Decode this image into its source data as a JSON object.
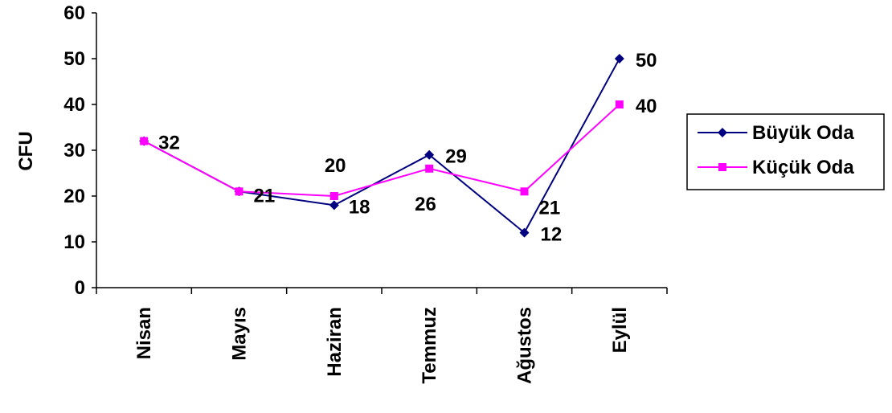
{
  "chart_data": {
    "type": "line",
    "title": "",
    "xlabel": "",
    "ylabel": "CFU",
    "ylim": [
      0,
      60
    ],
    "yticks": [
      0,
      10,
      20,
      30,
      40,
      50,
      60
    ],
    "categories": [
      "Nisan",
      "Mayıs",
      "Haziran",
      "Temmuz",
      "Ağustos",
      "Eylül"
    ],
    "series": [
      {
        "name": "Büyük Oda",
        "values": [
          32,
          21,
          18,
          29,
          12,
          50
        ],
        "color": "#000080",
        "marker": "diamond"
      },
      {
        "name": "Küçük Oda",
        "values": [
          32,
          21,
          20,
          26,
          21,
          40
        ],
        "color": "#FF00FF",
        "marker": "square"
      }
    ],
    "data_labels": [
      "32",
      "21",
      "18",
      "20",
      "26",
      "29",
      "12",
      "21",
      "50",
      "40"
    ],
    "legend": "right",
    "grid": false
  }
}
